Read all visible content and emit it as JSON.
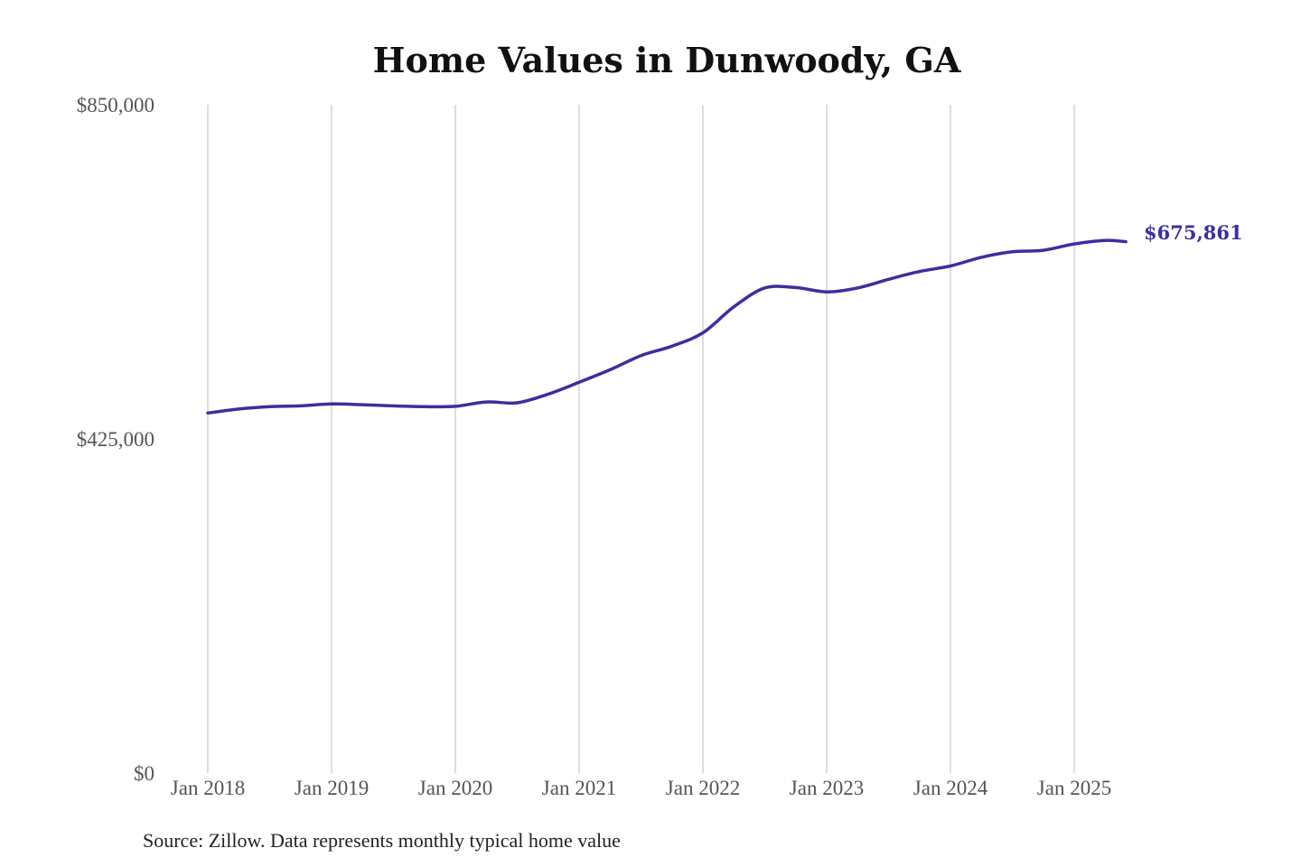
{
  "colors": {
    "line": "#3b2f9f",
    "grid": "#c8c8c8",
    "tick_text": "#555555"
  },
  "chart_data": {
    "type": "line",
    "title": "Home Values in Dunwoody, GA",
    "xlabel": "",
    "ylabel": "",
    "ylim": [
      0,
      850000
    ],
    "y_ticks": [
      {
        "value": 0,
        "label": "$0"
      },
      {
        "value": 425000,
        "label": "$425,000"
      },
      {
        "value": 850000,
        "label": "$850,000"
      }
    ],
    "x_ticks": [
      {
        "value": "2018-01",
        "label": "Jan 2018"
      },
      {
        "value": "2019-01",
        "label": "Jan 2019"
      },
      {
        "value": "2020-01",
        "label": "Jan 2020"
      },
      {
        "value": "2021-01",
        "label": "Jan 2021"
      },
      {
        "value": "2022-01",
        "label": "Jan 2022"
      },
      {
        "value": "2023-01",
        "label": "Jan 2023"
      },
      {
        "value": "2024-01",
        "label": "Jan 2024"
      },
      {
        "value": "2025-01",
        "label": "Jan 2025"
      }
    ],
    "grid": {
      "vertical": true,
      "horizontal": false
    },
    "end_label": "$675,861",
    "series": [
      {
        "points": [
          {
            "x": "2018-01",
            "y": 458000
          },
          {
            "x": "2018-04",
            "y": 463000
          },
          {
            "x": "2018-07",
            "y": 466000
          },
          {
            "x": "2018-10",
            "y": 467000
          },
          {
            "x": "2019-01",
            "y": 469500
          },
          {
            "x": "2019-04",
            "y": 468500
          },
          {
            "x": "2019-07",
            "y": 467000
          },
          {
            "x": "2019-10",
            "y": 466000
          },
          {
            "x": "2020-01",
            "y": 466500
          },
          {
            "x": "2020-04",
            "y": 472000
          },
          {
            "x": "2020-07",
            "y": 471000
          },
          {
            "x": "2020-10",
            "y": 482000
          },
          {
            "x": "2021-01",
            "y": 497000
          },
          {
            "x": "2021-04",
            "y": 513000
          },
          {
            "x": "2021-07",
            "y": 531000
          },
          {
            "x": "2021-10",
            "y": 543000
          },
          {
            "x": "2022-01",
            "y": 560000
          },
          {
            "x": "2022-04",
            "y": 593000
          },
          {
            "x": "2022-07",
            "y": 617000
          },
          {
            "x": "2022-10",
            "y": 617500
          },
          {
            "x": "2023-01",
            "y": 612000
          },
          {
            "x": "2023-04",
            "y": 617000
          },
          {
            "x": "2023-07",
            "y": 628000
          },
          {
            "x": "2023-10",
            "y": 638000
          },
          {
            "x": "2024-01",
            "y": 645000
          },
          {
            "x": "2024-04",
            "y": 656000
          },
          {
            "x": "2024-07",
            "y": 663000
          },
          {
            "x": "2024-10",
            "y": 665000
          },
          {
            "x": "2025-01",
            "y": 673000
          },
          {
            "x": "2025-04",
            "y": 677500
          },
          {
            "x": "2025-06",
            "y": 675861
          }
        ]
      }
    ]
  },
  "footer": {
    "source": "Source: Zillow. Data represents monthly typical home value"
  }
}
